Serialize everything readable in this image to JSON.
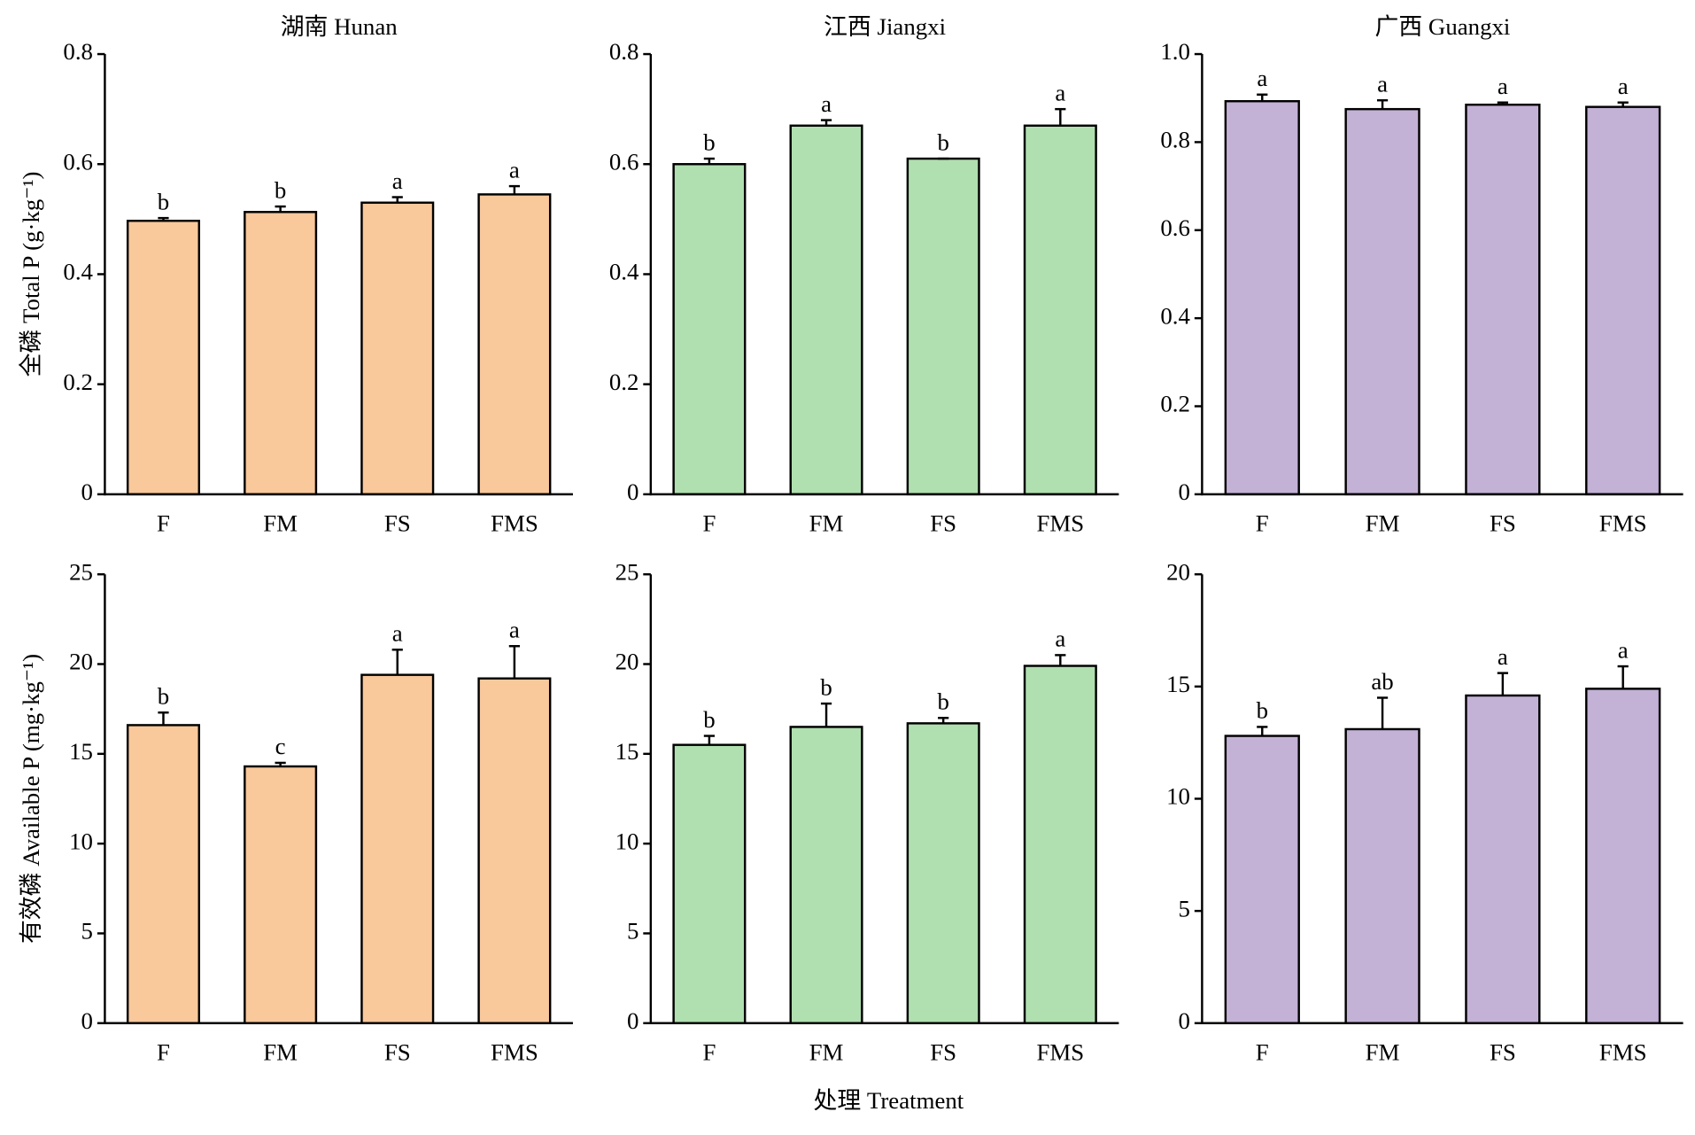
{
  "chart_data": [
    {
      "type": "bar",
      "title": "湖南 Hunan",
      "ylabel": "全磷 Total P (g·kg⁻¹)",
      "categories": [
        "F",
        "FM",
        "FS",
        "FMS"
      ],
      "values": [
        0.497,
        0.513,
        0.53,
        0.545
      ],
      "errors": [
        0.005,
        0.01,
        0.01,
        0.015
      ],
      "annotations": [
        "b",
        "b",
        "a",
        "a"
      ],
      "color": "#f9c89b",
      "ylim": [
        0,
        0.8
      ],
      "yticks": [
        0,
        0.2,
        0.4,
        0.6,
        0.8
      ]
    },
    {
      "type": "bar",
      "title": "江西 Jiangxi",
      "categories": [
        "F",
        "FM",
        "FS",
        "FMS"
      ],
      "values": [
        0.6,
        0.67,
        0.61,
        0.67
      ],
      "errors": [
        0.01,
        0.01,
        0,
        0.03
      ],
      "annotations": [
        "b",
        "a",
        "b",
        "a"
      ],
      "color": "#b0dfb0",
      "ylim": [
        0,
        0.8
      ],
      "yticks": [
        0,
        0.2,
        0.4,
        0.6,
        0.8
      ]
    },
    {
      "type": "bar",
      "title": "广西 Guangxi",
      "categories": [
        "F",
        "FM",
        "FS",
        "FMS"
      ],
      "values": [
        0.893,
        0.875,
        0.885,
        0.88
      ],
      "errors": [
        0.015,
        0.02,
        0.005,
        0.01
      ],
      "annotations": [
        "a",
        "a",
        "a",
        "a"
      ],
      "color": "#c3b1d6",
      "ylim": [
        0,
        1
      ],
      "yticks": [
        0,
        0.2,
        0.4,
        0.6,
        0.8,
        {
          "value": 1,
          "label": "1.0"
        }
      ]
    },
    {
      "type": "bar",
      "ylabel": "有效磷 Available P (mg·kg⁻¹)",
      "categories": [
        "F",
        "FM",
        "FS",
        "FMS"
      ],
      "values": [
        16.6,
        14.3,
        19.4,
        19.2
      ],
      "errors": [
        0.7,
        0.2,
        1.4,
        1.8
      ],
      "annotations": [
        "b",
        "c",
        "a",
        "a"
      ],
      "color": "#f9c89b",
      "ylim": [
        0,
        25
      ],
      "yticks": [
        0,
        5,
        10,
        15,
        20,
        25
      ]
    },
    {
      "type": "bar",
      "xlabel": "处理 Treatment",
      "categories": [
        "F",
        "FM",
        "FS",
        "FMS"
      ],
      "values": [
        15.5,
        16.5,
        16.7,
        19.9
      ],
      "errors": [
        0.5,
        1.3,
        0.3,
        0.6
      ],
      "annotations": [
        "b",
        "b",
        "b",
        "a"
      ],
      "color": "#b0dfb0",
      "ylim": [
        0,
        25
      ],
      "yticks": [
        0,
        5,
        10,
        15,
        20,
        25
      ]
    },
    {
      "type": "bar",
      "categories": [
        "F",
        "FM",
        "FS",
        "FMS"
      ],
      "values": [
        12.8,
        13.1,
        14.6,
        14.9
      ],
      "errors": [
        0.4,
        1.4,
        1.0,
        1.0
      ],
      "annotations": [
        "b",
        "ab",
        "a",
        "a"
      ],
      "color": "#c3b1d6",
      "ylim": [
        0,
        20
      ],
      "yticks": [
        0,
        5,
        10,
        15,
        20
      ]
    }
  ]
}
